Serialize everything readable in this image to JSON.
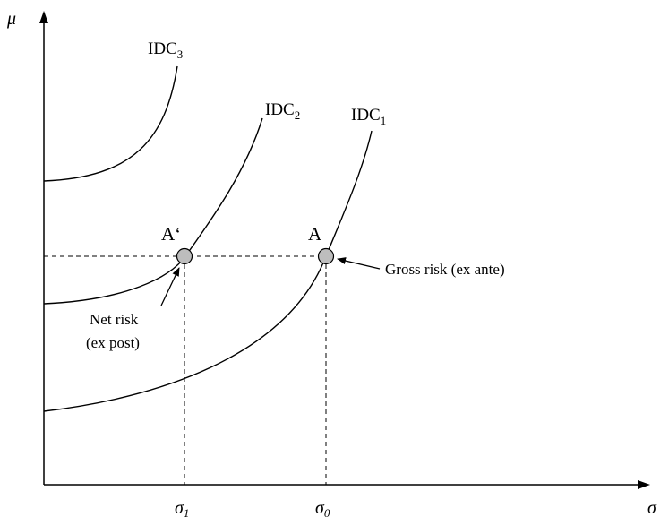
{
  "axes": {
    "y_label": "μ",
    "x_label": "σ",
    "x_ticks": [
      {
        "base": "σ",
        "sub": "1"
      },
      {
        "base": "σ",
        "sub": "0"
      }
    ]
  },
  "curves": [
    {
      "base": "IDC",
      "sub": "3"
    },
    {
      "base": "IDC",
      "sub": "2"
    },
    {
      "base": "IDC",
      "sub": "1"
    }
  ],
  "points": [
    {
      "label": "A‘"
    },
    {
      "label": "A"
    }
  ],
  "annotations": {
    "gross_risk": "Gross risk (ex ante)",
    "net_risk_line1": "Net risk",
    "net_risk_line2": "(ex post)"
  },
  "colors": {
    "point_fill": "#bdbdbd",
    "line": "#000000"
  }
}
